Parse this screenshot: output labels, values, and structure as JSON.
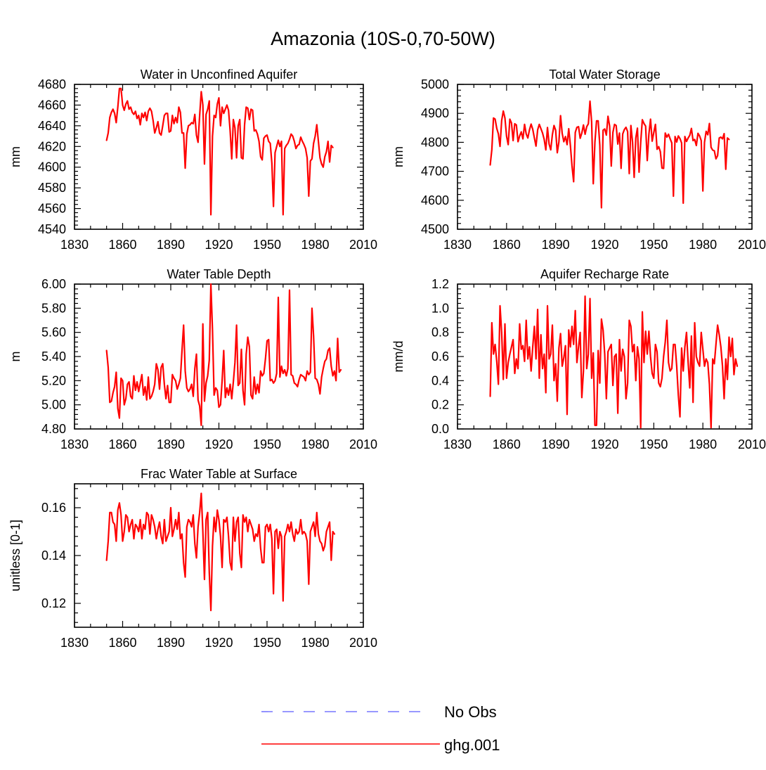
{
  "figure": {
    "title": "Amazonia (10S-0,70-50W)"
  },
  "colors": {
    "model": "#ff0000",
    "obs": "#7777ff"
  },
  "legend": [
    {
      "label": "No Obs",
      "style": "dashed",
      "color": "#7777ff"
    },
    {
      "label": "ghg.001",
      "style": "solid",
      "color": "#ff0000"
    }
  ],
  "chart_data": [
    {
      "type": "line",
      "title": "Water in Unconfined Aquifer",
      "ylabel": "mm",
      "xlim": [
        1830,
        2010
      ],
      "ylim": [
        4540,
        4680
      ],
      "xticks": [
        1830,
        1860,
        1890,
        1920,
        1950,
        1980,
        2010
      ],
      "yticks": [
        4540,
        4560,
        4580,
        4600,
        4620,
        4640,
        4660,
        4680
      ],
      "ytick_labels": [
        "4540",
        "4560",
        "4580",
        "4600",
        "4620",
        "4640",
        "4660",
        "4680"
      ],
      "series": [
        {
          "name": "ghg.001",
          "x_start": 1850,
          "x_step": 1,
          "values": [
            4626,
            4633,
            4648,
            4653,
            4656,
            4652,
            4643,
            4658,
            4676,
            4676,
            4660,
            4655,
            4661,
            4664,
            4656,
            4658,
            4653,
            4651,
            4654,
            4647,
            4650,
            4641,
            4652,
            4648,
            4653,
            4645,
            4654,
            4657,
            4654,
            4645,
            4633,
            4638,
            4644,
            4633,
            4631,
            4640,
            4650,
            4652,
            4652,
            4634,
            4635,
            4650,
            4642,
            4648,
            4643,
            4658,
            4653,
            4633,
            4633,
            4599,
            4632,
            4640,
            4641,
            4643,
            4642,
            4651,
            4631,
            4624,
            4650,
            4673,
            4660,
            4603,
            4651,
            4656,
            4664,
            4554,
            4630,
            4650,
            4648,
            4661,
            4667,
            4640,
            4658,
            4652,
            4656,
            4660,
            4655,
            4635,
            4608,
            4646,
            4638,
            4609,
            4640,
            4646,
            4609,
            4608,
            4641,
            4658,
            4657,
            4646,
            4656,
            4655,
            4635,
            4636,
            4632,
            4625,
            4610,
            4607,
            4628,
            4630,
            4631,
            4625,
            4623,
            4604,
            4562,
            4614,
            4620,
            4626,
            4620,
            4625,
            4554,
            4618,
            4621,
            4623,
            4627,
            4632,
            4630,
            4625,
            4618,
            4621,
            4622,
            4629,
            4625,
            4622,
            4618,
            4609,
            4572,
            4606,
            4608,
            4623,
            4630,
            4641,
            4625,
            4609,
            4603,
            4600,
            4610,
            4615,
            4625,
            4605,
            4621,
            4619
          ]
        }
      ]
    },
    {
      "type": "line",
      "title": "Total Water Storage",
      "ylabel": "mm",
      "xlim": [
        1830,
        2010
      ],
      "ylim": [
        4500,
        5000
      ],
      "xticks": [
        1830,
        1860,
        1890,
        1920,
        1950,
        1980,
        2010
      ],
      "yticks": [
        4500,
        4600,
        4700,
        4800,
        4900,
        5000
      ],
      "ytick_labels": [
        "4500",
        "4600",
        "4700",
        "4800",
        "4900",
        "5000"
      ],
      "series": [
        {
          "name": "ghg.001",
          "x_start": 1850,
          "x_step": 1,
          "values": [
            4722,
            4775,
            4884,
            4880,
            4848,
            4829,
            4786,
            4875,
            4908,
            4884,
            4821,
            4792,
            4880,
            4867,
            4806,
            4864,
            4860,
            4802,
            4822,
            4836,
            4812,
            4862,
            4829,
            4815,
            4843,
            4863,
            4845,
            4815,
            4787,
            4843,
            4862,
            4847,
            4832,
            4810,
            4774,
            4851,
            4794,
            4774,
            4826,
            4858,
            4842,
            4764,
            4802,
            4892,
            4831,
            4802,
            4820,
            4792,
            4847,
            4790,
            4719,
            4664,
            4834,
            4852,
            4854,
            4814,
            4832,
            4860,
            4828,
            4854,
            4864,
            4942,
            4870,
            4657,
            4800,
            4874,
            4874,
            4790,
            4574,
            4842,
            4846,
            4825,
            4890,
            4856,
            4718,
            4834,
            4862,
            4858,
            4794,
            4832,
            4710,
            4829,
            4844,
            4852,
            4837,
            4692,
            4858,
            4802,
            4679,
            4815,
            4849,
            4697,
            4800,
            4878,
            4865,
            4856,
            4737,
            4828,
            4880,
            4804,
            4834,
            4862,
            4776,
            4785,
            4768,
            4711,
            4710,
            4832,
            4818,
            4828,
            4812,
            4798,
            4614,
            4820,
            4801,
            4822,
            4813,
            4798,
            4590,
            4820,
            4803,
            4815,
            4824,
            4848,
            4806,
            4810,
            4789,
            4831,
            4822,
            4806,
            4632,
            4800,
            4838,
            4826,
            4865,
            4783,
            4773,
            4771,
            4743,
            4754,
            4815,
            4818,
            4812,
            4830,
            4707,
            4815,
            4810
          ]
        }
      ]
    },
    {
      "type": "line",
      "title": "Water Table Depth",
      "ylabel": "m",
      "xlim": [
        1830,
        2010
      ],
      "ylim": [
        4.8,
        6.0
      ],
      "xticks": [
        1830,
        1860,
        1890,
        1920,
        1950,
        1980,
        2010
      ],
      "yticks": [
        4.8,
        5.0,
        5.2,
        5.4,
        5.6,
        5.8,
        6.0
      ],
      "ytick_labels": [
        "4.80",
        "5.00",
        "5.20",
        "5.40",
        "5.60",
        "5.80",
        "6.00"
      ],
      "series": [
        {
          "name": "ghg.001",
          "x_start": 1850,
          "x_step": 1,
          "values": [
            5.45,
            5.31,
            5.02,
            5.03,
            5.1,
            5.15,
            5.27,
            4.97,
            4.89,
            5.22,
            5.2,
            5.0,
            5.05,
            5.17,
            5.19,
            5.07,
            5.05,
            5.24,
            5.12,
            5.19,
            5.11,
            5.18,
            5.25,
            5.08,
            5.15,
            5.04,
            5.23,
            5.05,
            5.07,
            5.11,
            5.17,
            5.34,
            5.29,
            5.13,
            5.31,
            5.34,
            5.17,
            5.05,
            5.16,
            5.02,
            5.02,
            5.25,
            5.22,
            5.2,
            5.13,
            5.17,
            5.22,
            5.45,
            5.66,
            5.28,
            5.14,
            5.11,
            5.13,
            5.17,
            5.07,
            5.3,
            5.42,
            5.04,
            4.99,
            4.83,
            5.67,
            5.03,
            5.18,
            5.24,
            5.37,
            6.0,
            5.62,
            5.08,
            5.14,
            5.12,
            4.98,
            5.0,
            5.2,
            5.45,
            5.06,
            5.14,
            5.08,
            5.17,
            5.05,
            5.19,
            5.35,
            5.66,
            5.16,
            5.18,
            5.46,
            5.12,
            5.0,
            5.42,
            5.56,
            5.48,
            5.08,
            5.05,
            5.23,
            5.09,
            5.17,
            5.1,
            5.28,
            5.24,
            5.26,
            5.38,
            5.53,
            5.54,
            5.2,
            5.21,
            5.18,
            5.2,
            5.26,
            5.89,
            5.23,
            5.32,
            5.26,
            5.29,
            5.24,
            5.3,
            5.95,
            5.25,
            5.24,
            5.18,
            5.17,
            5.15,
            5.21,
            5.25,
            5.24,
            5.23,
            5.2,
            5.28,
            5.25,
            5.27,
            5.8,
            5.57,
            5.22,
            5.21,
            5.17,
            5.09,
            5.23,
            5.3,
            5.36,
            5.38,
            5.45,
            5.47,
            5.32,
            5.24,
            5.28,
            5.2,
            5.55,
            5.27,
            5.29
          ]
        }
      ]
    },
    {
      "type": "line",
      "title": "Aquifer Recharge Rate",
      "ylabel": "mm/d",
      "xlim": [
        1830,
        2010
      ],
      "ylim": [
        0.0,
        1.2
      ],
      "xticks": [
        1830,
        1860,
        1890,
        1920,
        1950,
        1980,
        2010
      ],
      "yticks": [
        0.0,
        0.2,
        0.4,
        0.6,
        0.8,
        1.0,
        1.2
      ],
      "ytick_labels": [
        "0.0",
        "0.2",
        "0.4",
        "0.6",
        "0.8",
        "1.0",
        "1.2"
      ],
      "series": [
        {
          "name": "ghg.001",
          "x_start": 1850,
          "x_step": 1,
          "values": [
            0.27,
            0.88,
            0.62,
            0.7,
            0.56,
            0.37,
            1.02,
            0.8,
            0.41,
            0.87,
            0.42,
            0.55,
            0.62,
            0.68,
            0.74,
            0.46,
            0.58,
            0.5,
            0.87,
            0.66,
            0.69,
            0.56,
            0.9,
            0.58,
            0.68,
            0.48,
            0.68,
            0.85,
            0.58,
            0.99,
            0.42,
            0.78,
            0.5,
            0.62,
            0.3,
            1.02,
            0.58,
            0.62,
            0.86,
            0.4,
            0.54,
            0.23,
            0.67,
            0.79,
            0.52,
            0.59,
            0.69,
            0.12,
            0.82,
            0.68,
            0.85,
            0.7,
            0.98,
            0.55,
            0.68,
            0.8,
            0.26,
            0.48,
            1.1,
            0.5,
            0.62,
            1.08,
            0.42,
            0.63,
            0.03,
            0.03,
            0.65,
            0.38,
            0.91,
            0.82,
            0.62,
            0.25,
            0.64,
            0.67,
            0.7,
            0.36,
            0.6,
            0.62,
            0.13,
            0.74,
            0.48,
            0.66,
            0.6,
            0.25,
            0.38,
            0.9,
            0.85,
            0.64,
            0.7,
            0.4,
            0.68,
            0.58,
            0.01,
            0.97,
            0.55,
            0.81,
            0.62,
            0.81,
            0.6,
            0.46,
            0.42,
            0.7,
            0.64,
            0.38,
            0.35,
            0.42,
            0.6,
            0.72,
            0.9,
            0.55,
            0.48,
            0.5,
            0.7,
            0.7,
            0.52,
            0.28,
            0.1,
            0.67,
            0.48,
            0.68,
            0.8,
            0.55,
            0.34,
            0.77,
            0.22,
            0.88,
            0.6,
            0.55,
            0.52,
            0.8,
            0.66,
            0.52,
            0.58,
            0.55,
            0.37,
            0.01,
            0.58,
            0.54,
            0.7,
            0.86,
            0.78,
            0.68,
            0.52,
            0.25,
            0.58,
            0.41,
            0.76,
            0.6,
            0.75,
            0.45,
            0.58,
            0.52
          ]
        }
      ]
    },
    {
      "type": "line",
      "title": "Frac Water Table at Surface",
      "ylabel": "unitless [0-1]",
      "xlim": [
        1830,
        2010
      ],
      "ylim": [
        0.11,
        0.17
      ],
      "xticks": [
        1830,
        1860,
        1890,
        1920,
        1950,
        1980,
        2010
      ],
      "yticks": [
        0.12,
        0.14,
        0.16
      ],
      "ytick_labels": [
        "0.12",
        "0.14",
        "0.16"
      ],
      "series": [
        {
          "name": "ghg.001",
          "x_start": 1850,
          "x_step": 1,
          "values": [
            0.138,
            0.146,
            0.158,
            0.158,
            0.154,
            0.153,
            0.146,
            0.159,
            0.162,
            0.157,
            0.146,
            0.15,
            0.157,
            0.156,
            0.15,
            0.153,
            0.155,
            0.147,
            0.153,
            0.152,
            0.15,
            0.155,
            0.147,
            0.153,
            0.151,
            0.158,
            0.157,
            0.149,
            0.157,
            0.155,
            0.152,
            0.147,
            0.151,
            0.154,
            0.148,
            0.145,
            0.155,
            0.146,
            0.148,
            0.15,
            0.16,
            0.148,
            0.151,
            0.155,
            0.151,
            0.158,
            0.147,
            0.149,
            0.137,
            0.131,
            0.152,
            0.155,
            0.154,
            0.152,
            0.157,
            0.145,
            0.139,
            0.152,
            0.158,
            0.166,
            0.15,
            0.13,
            0.155,
            0.158,
            0.133,
            0.117,
            0.144,
            0.156,
            0.15,
            0.159,
            0.155,
            0.148,
            0.135,
            0.155,
            0.154,
            0.156,
            0.148,
            0.137,
            0.134,
            0.156,
            0.146,
            0.154,
            0.156,
            0.141,
            0.135,
            0.157,
            0.154,
            0.156,
            0.15,
            0.155,
            0.153,
            0.151,
            0.146,
            0.149,
            0.148,
            0.153,
            0.143,
            0.137,
            0.137,
            0.152,
            0.153,
            0.15,
            0.153,
            0.147,
            0.124,
            0.15,
            0.151,
            0.143,
            0.15,
            0.148,
            0.121,
            0.148,
            0.15,
            0.153,
            0.15,
            0.154,
            0.149,
            0.146,
            0.151,
            0.149,
            0.15,
            0.155,
            0.149,
            0.15,
            0.149,
            0.146,
            0.128,
            0.15,
            0.152,
            0.154,
            0.148,
            0.158,
            0.149,
            0.146,
            0.145,
            0.142,
            0.144,
            0.15,
            0.152,
            0.154,
            0.138,
            0.15,
            0.149
          ]
        }
      ]
    }
  ]
}
